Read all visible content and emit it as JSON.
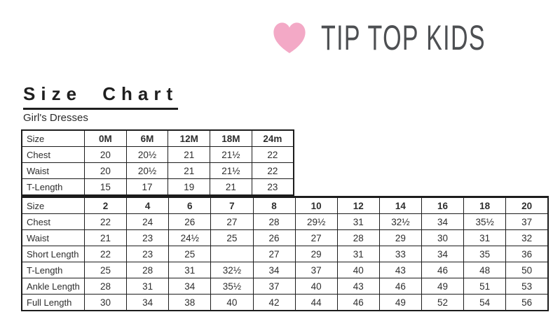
{
  "logo": {
    "brand": "TIP TOP KIDS",
    "heart_icon": "heart-icon",
    "heart_color": "#f3a9c6",
    "brand_text_color": "#4d4f52"
  },
  "page": {
    "title": "Size Chart",
    "subtitle": "Girl's Dresses"
  },
  "tables": [
    {
      "name": "baby-sizes",
      "columns": [
        "Size",
        "0M",
        "6M",
        "12M",
        "18M",
        "24m"
      ],
      "rows": [
        {
          "label": "Chest",
          "values": [
            "20",
            "20½",
            "21",
            "21½",
            "22"
          ]
        },
        {
          "label": "Waist",
          "values": [
            "20",
            "20½",
            "21",
            "21½",
            "22"
          ]
        },
        {
          "label": "T-Length",
          "values": [
            "15",
            "17",
            "19",
            "21",
            "23"
          ]
        }
      ]
    },
    {
      "name": "girls-sizes",
      "columns": [
        "Size",
        "2",
        "4",
        "6",
        "7",
        "8",
        "10",
        "12",
        "14",
        "16",
        "18",
        "20"
      ],
      "rows": [
        {
          "label": "Chest",
          "values": [
            "22",
            "24",
            "26",
            "27",
            "28",
            "29½",
            "31",
            "32½",
            "34",
            "35½",
            "37"
          ]
        },
        {
          "label": "Waist",
          "values": [
            "21",
            "23",
            "24½",
            "25",
            "26",
            "27",
            "28",
            "29",
            "30",
            "31",
            "32"
          ]
        },
        {
          "label": "Short Length",
          "values": [
            "22",
            "23",
            "25",
            "",
            "27",
            "29",
            "31",
            "33",
            "34",
            "35",
            "36"
          ]
        },
        {
          "label": "T-Length",
          "values": [
            "25",
            "28",
            "31",
            "32½",
            "34",
            "37",
            "40",
            "43",
            "46",
            "48",
            "50"
          ]
        },
        {
          "label": "Ankle Length",
          "values": [
            "28",
            "31",
            "34",
            "35½",
            "37",
            "40",
            "43",
            "46",
            "49",
            "51",
            "53"
          ]
        },
        {
          "label": "Full Length",
          "values": [
            "30",
            "34",
            "38",
            "40",
            "42",
            "44",
            "46",
            "49",
            "52",
            "54",
            "56"
          ]
        }
      ]
    }
  ]
}
